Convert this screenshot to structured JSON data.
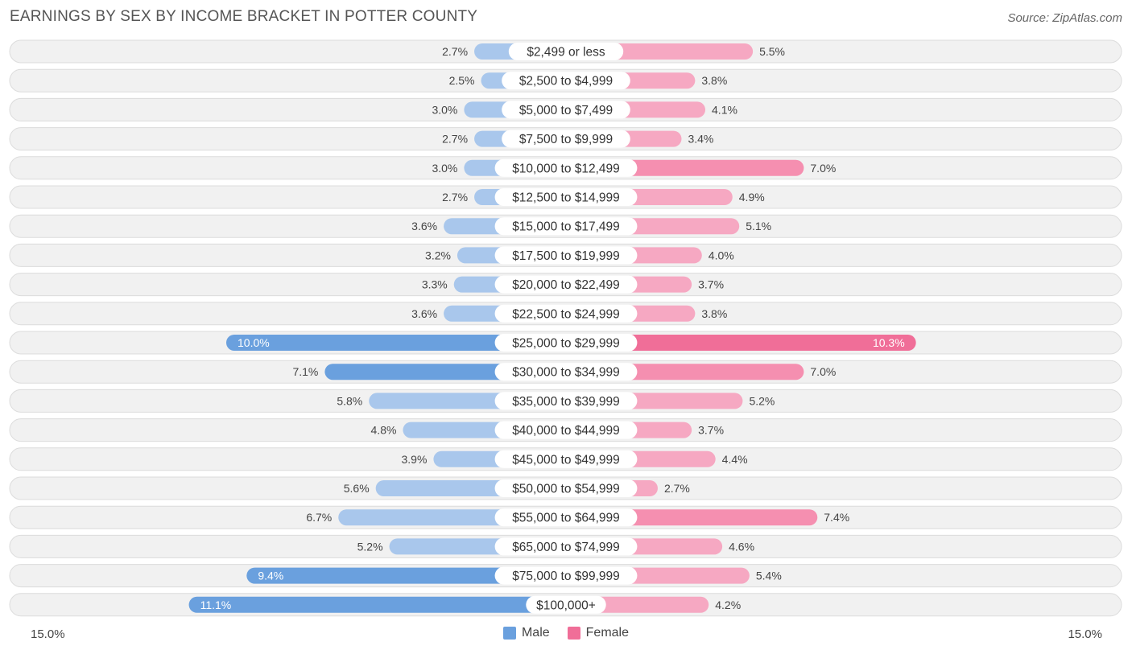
{
  "header": {
    "title": "EARNINGS BY SEX BY INCOME BRACKET IN POTTER COUNTY",
    "source": "Source: ZipAtlas.com"
  },
  "legend": {
    "male_label": "Male",
    "female_label": "Female"
  },
  "axis": {
    "left_label": "15.0%",
    "right_label": "15.0%"
  },
  "colors": {
    "male_light": "#a9c7ec",
    "male_strong": "#6aa0de",
    "female_light": "#f6a8c2",
    "female_strong": "#f06e98",
    "row_bg": "#f1f1f1",
    "row_border": "#dcdcdc"
  },
  "chart_data": {
    "type": "bar",
    "orientation": "horizontal-diverging",
    "title": "EARNINGS BY SEX BY INCOME BRACKET IN POTTER COUNTY",
    "xlim": [
      -15,
      15
    ],
    "categories": [
      "$2,499 or less",
      "$2,500 to $4,999",
      "$5,000 to $7,499",
      "$7,500 to $9,999",
      "$10,000 to $12,499",
      "$12,500 to $14,999",
      "$15,000 to $17,499",
      "$17,500 to $19,999",
      "$20,000 to $22,499",
      "$22,500 to $24,999",
      "$25,000 to $29,999",
      "$30,000 to $34,999",
      "$35,000 to $39,999",
      "$40,000 to $44,999",
      "$45,000 to $49,999",
      "$50,000 to $54,999",
      "$55,000 to $64,999",
      "$65,000 to $74,999",
      "$75,000 to $99,999",
      "$100,000+"
    ],
    "series": [
      {
        "name": "Male",
        "values": [
          2.7,
          2.5,
          3.0,
          2.7,
          3.0,
          2.7,
          3.6,
          3.2,
          3.3,
          3.6,
          10.0,
          7.1,
          5.8,
          4.8,
          3.9,
          5.6,
          6.7,
          5.2,
          9.4,
          11.1
        ]
      },
      {
        "name": "Female",
        "values": [
          5.5,
          3.8,
          4.1,
          3.4,
          7.0,
          4.9,
          5.1,
          4.0,
          3.7,
          3.8,
          10.3,
          7.0,
          5.2,
          3.7,
          4.4,
          2.7,
          7.4,
          4.6,
          5.4,
          4.2
        ]
      }
    ]
  }
}
